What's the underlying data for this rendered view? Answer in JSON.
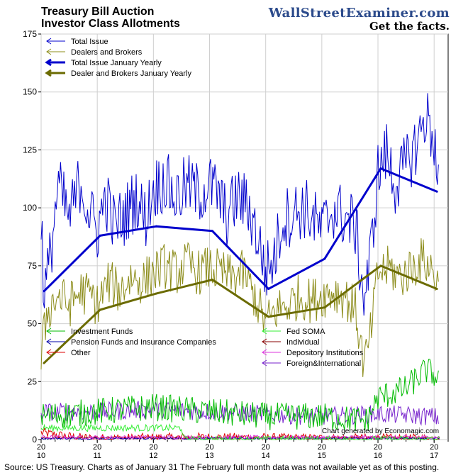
{
  "header": {
    "title_line1": "Treasury Bill Auction",
    "title_line2": "Investor Class Allotments",
    "brand": "WallStreetExaminer.com",
    "tagline": "Get the facts."
  },
  "footer": {
    "source": "Source: US Treasury. Charts as of January 31 The February full month data was not available yet as of this posting.",
    "credit": "Chart generated by Economagic.com"
  },
  "chart_data": {
    "type": "line",
    "ylim": [
      0,
      175
    ],
    "y_ticks": [
      0,
      25,
      50,
      75,
      100,
      125,
      150,
      175
    ],
    "xlim": [
      2010.0,
      2017.25
    ],
    "x_ticks": [
      {
        "value": 2010.0,
        "top": "20",
        "bottom": "10"
      },
      {
        "value": 2011.0,
        "top": "20",
        "bottom": "11"
      },
      {
        "value": 2012.0,
        "top": "20",
        "bottom": "12"
      },
      {
        "value": 2013.0,
        "top": "20",
        "bottom": "13"
      },
      {
        "value": 2014.0,
        "top": "20",
        "bottom": "14"
      },
      {
        "value": 2015.0,
        "top": "20",
        "bottom": "15"
      },
      {
        "value": 2016.0,
        "top": "20",
        "bottom": "16"
      },
      {
        "value": 2017.0,
        "top": "20",
        "bottom": "17"
      }
    ],
    "grid": true,
    "legend_top": [
      {
        "name": "Total Issue",
        "color": "#0000cc",
        "width": 1
      },
      {
        "name": "Dealers and Brokers",
        "color": "#8c8c1a",
        "width": 1
      },
      {
        "name": "Total Issue January Yearly",
        "color": "#0000cc",
        "width": 3
      },
      {
        "name": "Dealer and Brokers January Yearly",
        "color": "#6b6b00",
        "width": 3
      }
    ],
    "legend_bottom": [
      {
        "name": "Investment Funds",
        "color": "#00bb00"
      },
      {
        "name": "Fed SOMA",
        "color": "#33ee33"
      },
      {
        "name": "Pension Funds and Insurance Companies",
        "color": "#0000aa"
      },
      {
        "name": "Individual",
        "color": "#880000"
      },
      {
        "name": "Other",
        "color": "#dd0000"
      },
      {
        "name": "Depository Institutions",
        "color": "#dd33dd"
      },
      {
        "name": "Foreign&International",
        "color": "#7722cc"
      }
    ],
    "series": [
      {
        "name": "Total Issue",
        "color": "#0000cc",
        "approx_points": [
          [
            2010.0,
            100
          ],
          [
            2010.05,
            62
          ],
          [
            2010.15,
            76
          ],
          [
            2010.3,
            110
          ],
          [
            2010.5,
            95
          ],
          [
            2010.7,
            112
          ],
          [
            2010.85,
            98
          ],
          [
            2011.0,
            90
          ],
          [
            2011.15,
            105
          ],
          [
            2011.3,
            92
          ],
          [
            2011.5,
            97
          ],
          [
            2011.7,
            105
          ],
          [
            2011.85,
            95
          ],
          [
            2012.0,
            108
          ],
          [
            2012.2,
            112
          ],
          [
            2012.4,
            104
          ],
          [
            2012.6,
            110
          ],
          [
            2012.8,
            106
          ],
          [
            2013.0,
            110
          ],
          [
            2013.15,
            106
          ],
          [
            2013.3,
            96
          ],
          [
            2013.5,
            105
          ],
          [
            2013.7,
            100
          ],
          [
            2013.85,
            88
          ],
          [
            2014.0,
            72
          ],
          [
            2014.15,
            78
          ],
          [
            2014.3,
            95
          ],
          [
            2014.5,
            98
          ],
          [
            2014.7,
            100
          ],
          [
            2014.85,
            95
          ],
          [
            2015.0,
            90
          ],
          [
            2015.2,
            100
          ],
          [
            2015.4,
            96
          ],
          [
            2015.6,
            92
          ],
          [
            2015.75,
            60
          ],
          [
            2015.85,
            75
          ],
          [
            2016.0,
            115
          ],
          [
            2016.15,
            124
          ],
          [
            2016.3,
            110
          ],
          [
            2016.5,
            118
          ],
          [
            2016.7,
            128
          ],
          [
            2016.85,
            140
          ],
          [
            2017.0,
            130
          ],
          [
            2017.08,
            108
          ]
        ],
        "jitter": 14
      },
      {
        "name": "Dealers and Brokers",
        "color": "#8c8c1a",
        "approx_points": [
          [
            2010.0,
            35
          ],
          [
            2010.1,
            55
          ],
          [
            2010.3,
            62
          ],
          [
            2010.5,
            58
          ],
          [
            2010.7,
            64
          ],
          [
            2010.9,
            62
          ],
          [
            2011.0,
            58
          ],
          [
            2011.2,
            68
          ],
          [
            2011.4,
            64
          ],
          [
            2011.6,
            70
          ],
          [
            2011.8,
            68
          ],
          [
            2012.0,
            72
          ],
          [
            2012.2,
            75
          ],
          [
            2012.4,
            72
          ],
          [
            2012.6,
            76
          ],
          [
            2012.8,
            72
          ],
          [
            2013.0,
            74
          ],
          [
            2013.2,
            72
          ],
          [
            2013.4,
            70
          ],
          [
            2013.6,
            72
          ],
          [
            2013.8,
            62
          ],
          [
            2014.0,
            50
          ],
          [
            2014.2,
            56
          ],
          [
            2014.4,
            58
          ],
          [
            2014.6,
            62
          ],
          [
            2014.8,
            60
          ],
          [
            2015.0,
            62
          ],
          [
            2015.2,
            64
          ],
          [
            2015.4,
            62
          ],
          [
            2015.6,
            56
          ],
          [
            2015.75,
            32
          ],
          [
            2015.85,
            42
          ],
          [
            2016.0,
            72
          ],
          [
            2016.2,
            74
          ],
          [
            2016.4,
            70
          ],
          [
            2016.6,
            74
          ],
          [
            2016.8,
            78
          ],
          [
            2017.0,
            72
          ],
          [
            2017.08,
            66
          ]
        ],
        "jitter": 10
      },
      {
        "name": "Total Issue January Yearly",
        "color": "#0000cc",
        "points": [
          [
            2010.05,
            64
          ],
          [
            2011.05,
            88
          ],
          [
            2012.05,
            92
          ],
          [
            2013.05,
            90
          ],
          [
            2014.05,
            65
          ],
          [
            2015.05,
            78
          ],
          [
            2016.05,
            117
          ],
          [
            2017.05,
            107
          ]
        ]
      },
      {
        "name": "Dealer and Brokers January Yearly",
        "color": "#6b6b00",
        "points": [
          [
            2010.05,
            33
          ],
          [
            2011.05,
            56
          ],
          [
            2012.05,
            63
          ],
          [
            2013.05,
            69
          ],
          [
            2014.05,
            53
          ],
          [
            2015.05,
            57
          ],
          [
            2016.05,
            75
          ],
          [
            2017.05,
            65
          ]
        ]
      },
      {
        "name": "Investment Funds",
        "color": "#00bb00",
        "approx_points": [
          [
            2010.0,
            10
          ],
          [
            2011.0,
            12
          ],
          [
            2012.0,
            14
          ],
          [
            2013.0,
            12
          ],
          [
            2014.0,
            10
          ],
          [
            2015.0,
            10
          ],
          [
            2015.8,
            8
          ],
          [
            2016.0,
            18
          ],
          [
            2016.5,
            22
          ],
          [
            2016.85,
            30
          ],
          [
            2017.0,
            28
          ],
          [
            2017.08,
            25
          ]
        ],
        "jitter": 6
      },
      {
        "name": "Fed SOMA",
        "color": "#33ee33",
        "approx_points": [
          [
            2010.0,
            5
          ],
          [
            2011.0,
            5
          ],
          [
            2012.0,
            5
          ],
          [
            2012.5,
            5
          ],
          [
            2012.55,
            0
          ],
          [
            2017.1,
            0
          ]
        ],
        "jitter": 1.5
      },
      {
        "name": "Pension Funds and Insurance Companies",
        "color": "#0000aa",
        "approx_points": [
          [
            2010.0,
            0.5
          ],
          [
            2017.1,
            0.5
          ]
        ],
        "jitter": 0.4
      },
      {
        "name": "Individual",
        "color": "#880000",
        "approx_points": [
          [
            2010.0,
            0.8
          ],
          [
            2017.1,
            0.8
          ]
        ],
        "jitter": 0.5
      },
      {
        "name": "Other",
        "color": "#dd0000",
        "approx_points": [
          [
            2010.0,
            3
          ],
          [
            2010.6,
            1
          ],
          [
            2011.0,
            0.5
          ],
          [
            2013.0,
            1
          ],
          [
            2015.0,
            0.5
          ],
          [
            2017.1,
            0.5
          ]
        ],
        "jitter": 2
      },
      {
        "name": "Depository Institutions",
        "color": "#dd33dd",
        "approx_points": [
          [
            2010.0,
            1
          ],
          [
            2017.1,
            1
          ]
        ],
        "jitter": 0.8
      },
      {
        "name": "Foreign&International",
        "color": "#7722cc",
        "approx_points": [
          [
            2010.0,
            12
          ],
          [
            2011.0,
            12
          ],
          [
            2012.0,
            13
          ],
          [
            2013.0,
            12
          ],
          [
            2014.0,
            11
          ],
          [
            2015.0,
            10
          ],
          [
            2016.0,
            11
          ],
          [
            2017.0,
            10
          ],
          [
            2017.08,
            9
          ]
        ],
        "jitter": 4
      }
    ]
  }
}
